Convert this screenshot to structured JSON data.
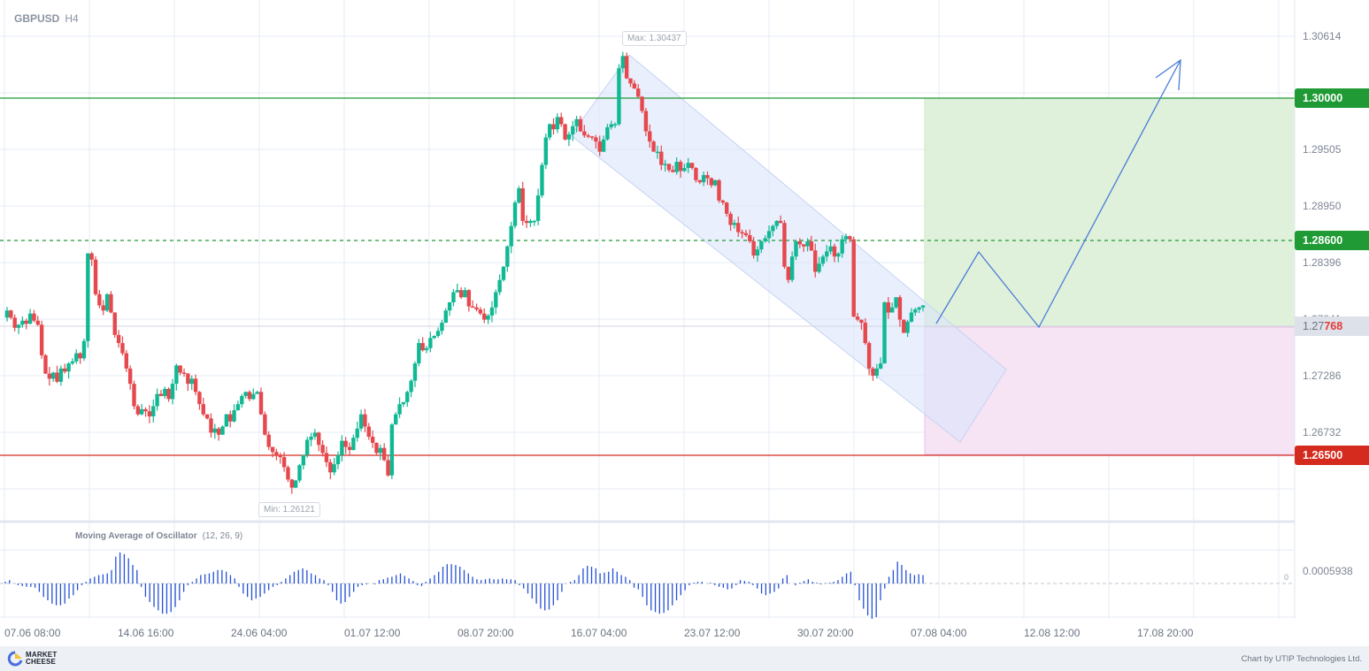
{
  "header": {
    "symbol": "GBPUSD",
    "timeframe": "H4"
  },
  "price_axis": {
    "ticks": [
      "1.30614",
      "1.29505",
      "1.28950",
      "1.28396",
      "1.27841",
      "1.27286",
      "1.26732"
    ],
    "target_label": "1.30000",
    "entry_label": "1.28600",
    "stop_label": "1.26500",
    "current_price_prefix": "1.27",
    "current_price_suffix": "768"
  },
  "callouts": {
    "max": "Max: 1.30437",
    "min": "Min: 1.26121"
  },
  "indicator": {
    "name": "Moving Average of Oscillator",
    "params": "(12, 26, 9)",
    "axis_value": "0.0005938",
    "zero_label": "0"
  },
  "time_axis": [
    "07.06 08:00",
    "14.06 16:00",
    "24.06 04:00",
    "01.07 12:00",
    "08.07 20:00",
    "16.07 04:00",
    "23.07 12:00",
    "30.07 20:00",
    "07.08 04:00",
    "12.08 12:00",
    "17.08 20:00"
  ],
  "footer": {
    "brand_line1": "MARKET",
    "brand_line2": "CHEESE",
    "credit": "Chart by UTIP Technologies Ltd."
  },
  "colors": {
    "bull": "#11b894",
    "bear": "#e5484d",
    "target": "#1f9a34",
    "stop": "#d52b1e",
    "projection": "#4a7bd8",
    "osma": "#2450d6",
    "channel": "#dbe4fa",
    "tp_zone": "#dff1da",
    "sl_zone": "#f6e3f4"
  },
  "chart_data": {
    "type": "candlestick",
    "title": "GBPUSD H4",
    "xlabel": "",
    "ylabel": "",
    "ylim": [
      1.259,
      1.308
    ],
    "x_ticks": [
      "07.06 08:00",
      "14.06 16:00",
      "24.06 04:00",
      "01.07 12:00",
      "08.07 20:00",
      "16.07 04:00",
      "23.07 12:00",
      "30.07 20:00",
      "07.08 04:00",
      "12.08 12:00",
      "17.08 20:00"
    ],
    "y_ticks": [
      1.30614,
      1.29505,
      1.2895,
      1.28396,
      1.27841,
      1.27286,
      1.26732
    ],
    "closes": [
      1.2792,
      1.2785,
      1.2775,
      1.2778,
      1.2782,
      1.2779,
      1.2789,
      1.2782,
      1.2778,
      1.2748,
      1.273,
      1.2725,
      1.2731,
      1.2722,
      1.2735,
      1.2732,
      1.274,
      1.2742,
      1.275,
      1.2745,
      1.2762,
      1.2848,
      1.2842,
      1.2808,
      1.2797,
      1.2792,
      1.2808,
      1.279,
      1.2768,
      1.276,
      1.275,
      1.2735,
      1.272,
      1.2698,
      1.269,
      1.2695,
      1.2693,
      1.2688,
      1.2698,
      1.271,
      1.2708,
      1.2715,
      1.2705,
      1.272,
      1.2738,
      1.2731,
      1.273,
      1.272,
      1.2725,
      1.2712,
      1.27,
      1.269,
      1.2686,
      1.2672,
      1.2676,
      1.267,
      1.2678,
      1.269,
      1.2683,
      1.2694,
      1.27,
      1.2708,
      1.2712,
      1.2705,
      1.271,
      1.2712,
      1.269,
      1.267,
      1.2658,
      1.2653,
      1.265,
      1.2648,
      1.2638,
      1.2626,
      1.2618,
      1.2625,
      1.264,
      1.265,
      1.2665,
      1.2668,
      1.2672,
      1.266,
      1.2652,
      1.2643,
      1.2633,
      1.2641,
      1.265,
      1.2664,
      1.2658,
      1.2655,
      1.2667,
      1.2676,
      1.269,
      1.2678,
      1.2668,
      1.2662,
      1.2652,
      1.2657,
      1.2645,
      1.263,
      1.268,
      1.269,
      1.27,
      1.2702,
      1.2712,
      1.2723,
      1.274,
      1.276,
      1.2753,
      1.2755,
      1.2765,
      1.2767,
      1.2772,
      1.278,
      1.2792,
      1.28,
      1.281,
      1.2812,
      1.2805,
      1.2812,
      1.2796,
      1.2795,
      1.2793,
      1.2789,
      1.2783,
      1.2787,
      1.2795,
      1.281,
      1.2822,
      1.2835,
      1.2855,
      1.2875,
      1.2898,
      1.2912,
      1.288,
      1.2878,
      1.288,
      1.288,
      1.2905,
      1.2935,
      1.2962,
      1.2975,
      1.297,
      1.2982,
      1.2975,
      1.296,
      1.2965,
      1.2973,
      1.298,
      1.2968,
      1.2964,
      1.2963,
      1.2962,
      1.2958,
      1.2948,
      1.296,
      1.2972,
      1.2975,
      1.2975,
      1.303,
      1.3042,
      1.302,
      1.3015,
      1.301,
      1.3002,
      1.2988,
      1.2968,
      1.2958,
      1.2948,
      1.2948,
      1.2935,
      1.2936,
      1.293,
      1.2928,
      1.2938,
      1.2929,
      1.2932,
      1.2937,
      1.2932,
      1.292,
      1.2918,
      1.2925,
      1.2922,
      1.2915,
      1.292,
      1.29,
      1.2898,
      1.2887,
      1.2876,
      1.2878,
      1.2869,
      1.2868,
      1.2866,
      1.286,
      1.2846,
      1.2852,
      1.286,
      1.2863,
      1.287,
      1.2875,
      1.288,
      1.2878,
      1.2835,
      1.2822,
      1.2845,
      1.286,
      1.2857,
      1.2855,
      1.286,
      1.2851,
      1.283,
      1.2838,
      1.2845,
      1.285,
      1.2855,
      1.2845,
      1.2848,
      1.2862,
      1.2865,
      1.2862,
      1.2786,
      1.2783,
      1.278,
      1.276,
      1.2735,
      1.2728,
      1.2735,
      1.274,
      1.28,
      1.279,
      1.2795,
      1.2805,
      1.2783,
      1.277,
      1.2781,
      1.279,
      1.2793,
      1.2795,
      1.2797
    ],
    "annotations": [
      {
        "type": "hline",
        "value": 1.3,
        "label": "1.30000",
        "style": "solid",
        "color": "#1f9a34"
      },
      {
        "type": "hline",
        "value": 1.286,
        "label": "1.28600",
        "style": "dashed",
        "color": "#1f9a34"
      },
      {
        "type": "hline",
        "value": 1.265,
        "label": "1.26500",
        "style": "solid",
        "color": "#d52b1e"
      },
      {
        "type": "label",
        "text": "Max: 1.30437"
      },
      {
        "type": "label",
        "text": "Min: 1.26121"
      },
      {
        "type": "channel",
        "text": "descending channel"
      },
      {
        "type": "zone",
        "text": "take profit zone",
        "from": 1.27768,
        "to": 1.3
      },
      {
        "type": "zone",
        "text": "stop loss zone",
        "from": 1.265,
        "to": 1.27768
      },
      {
        "type": "projection",
        "text": "zigzag up arrow to 1.3040"
      }
    ],
    "current_price": 1.27768,
    "indicator": {
      "name": "Moving Average of Oscillator",
      "params": [
        12,
        26,
        9
      ],
      "values": [
        0.1,
        0.2,
        0,
        -0.1,
        -0.15,
        -0.2,
        -0.2,
        -0.25,
        -0.5,
        -0.8,
        -1.0,
        -1.2,
        -1.3,
        -1.3,
        -1.2,
        -0.9,
        -0.7,
        -0.4,
        -0.1,
        0.1,
        0.3,
        0.4,
        0.5,
        0.55,
        0.6,
        0.8,
        1.6,
        1.85,
        1.75,
        1.5,
        1.1,
        0.8,
        -0.2,
        -0.8,
        -1.1,
        -1.4,
        -1.6,
        -1.8,
        -1.8,
        -1.7,
        -1.4,
        -1.0,
        -0.5,
        -0.1,
        0.1,
        0.3,
        0.5,
        0.55,
        0.6,
        0.7,
        0.8,
        0.8,
        0.7,
        0.5,
        0.3,
        -0.2,
        -0.6,
        -0.8,
        -1.0,
        -0.9,
        -0.8,
        -0.6,
        -0.4,
        -0.2,
        -0.1,
        0.1,
        0.3,
        0.5,
        0.7,
        0.8,
        0.9,
        0.8,
        0.6,
        0.5,
        0.3,
        0.2,
        -0.1,
        -0.5,
        -1.0,
        -1.2,
        -1.1,
        -0.8,
        -0.5,
        -0.2,
        -0.1,
        -0.05,
        0,
        -0.05,
        0.2,
        0.25,
        0.35,
        0.4,
        0.5,
        0.6,
        0.45,
        0.3,
        0.15,
        -0.1,
        -0.15,
        0.1,
        0.3,
        0.5,
        0.7,
        1.0,
        1.15,
        1.15,
        1.1,
        1.0,
        0.8,
        0.6,
        0.4,
        0.25,
        0.2,
        0.25,
        0.3,
        0.25,
        0.25,
        0.3,
        0.25,
        0.25,
        0.2,
        -0.1,
        -0.3,
        -0.6,
        -0.9,
        -1.2,
        -1.5,
        -1.6,
        -1.55,
        -1.3,
        -1.0,
        -0.5,
        0,
        0.1,
        0.2,
        0.5,
        0.9,
        1.05,
        1.0,
        0.9,
        0.6,
        0.65,
        0.7,
        0.9,
        0.7,
        0.5,
        0.4,
        0.2,
        -0.25,
        -0.35,
        -0.8,
        -1.3,
        -1.6,
        -1.7,
        -1.8,
        -1.75,
        -1.6,
        -1.3,
        -1.0,
        -0.7,
        -0.4,
        -0.1,
        0.05,
        0.1,
        0.1,
        0,
        0.05,
        -0.1,
        -0.2,
        -0.25,
        -0.35,
        -0.3,
        -0.1,
        0.2,
        0.15,
        0.1,
        -0.1,
        -0.3,
        -0.6,
        -0.7,
        -0.6,
        -0.5,
        -0.3,
        0.3,
        0.5,
        0,
        -0.1,
        0.05,
        0.15,
        0.25,
        0.1,
        0.05,
        -0.05,
        0.02,
        0.05,
        0.1,
        0.2,
        0.4,
        0.6,
        0.7,
        -0.1,
        -1.0,
        -1.5,
        -1.9,
        -2.1,
        -2.0,
        -1.0,
        -0.3,
        0.4,
        0.8,
        1.3,
        1.1,
        0.8,
        0.6,
        0.5,
        0.55,
        0.5
      ]
    }
  }
}
